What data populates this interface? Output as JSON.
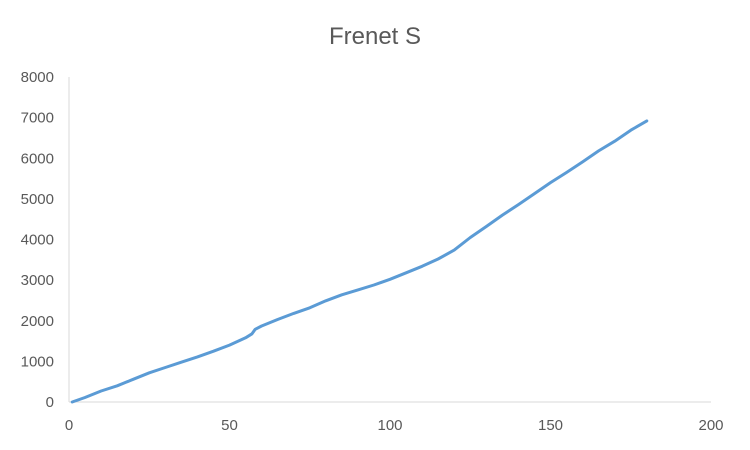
{
  "chart_data": {
    "type": "line",
    "title": "Frenet S",
    "xlabel": "",
    "ylabel": "",
    "xlim": [
      0,
      200
    ],
    "ylim": [
      0,
      8000
    ],
    "x_ticks": [
      0,
      50,
      100,
      150,
      200
    ],
    "y_ticks": [
      0,
      1000,
      2000,
      3000,
      4000,
      5000,
      6000,
      7000,
      8000
    ],
    "grid": false,
    "legend": "none",
    "series": [
      {
        "color": "#5b9bd5",
        "points": [
          [
            1,
            0
          ],
          [
            5,
            110
          ],
          [
            10,
            270
          ],
          [
            15,
            400
          ],
          [
            20,
            560
          ],
          [
            25,
            720
          ],
          [
            30,
            850
          ],
          [
            35,
            980
          ],
          [
            40,
            1110
          ],
          [
            45,
            1250
          ],
          [
            50,
            1400
          ],
          [
            55,
            1580
          ],
          [
            57,
            1680
          ],
          [
            58,
            1790
          ],
          [
            60,
            1870
          ],
          [
            65,
            2030
          ],
          [
            70,
            2180
          ],
          [
            75,
            2320
          ],
          [
            80,
            2490
          ],
          [
            85,
            2640
          ],
          [
            90,
            2760
          ],
          [
            95,
            2880
          ],
          [
            100,
            3020
          ],
          [
            105,
            3180
          ],
          [
            110,
            3340
          ],
          [
            115,
            3520
          ],
          [
            120,
            3740
          ],
          [
            125,
            4050
          ],
          [
            130,
            4320
          ],
          [
            135,
            4600
          ],
          [
            140,
            4860
          ],
          [
            145,
            5130
          ],
          [
            150,
            5400
          ],
          [
            155,
            5650
          ],
          [
            160,
            5910
          ],
          [
            165,
            6180
          ],
          [
            170,
            6420
          ],
          [
            175,
            6690
          ],
          [
            180,
            6920
          ]
        ]
      }
    ]
  }
}
